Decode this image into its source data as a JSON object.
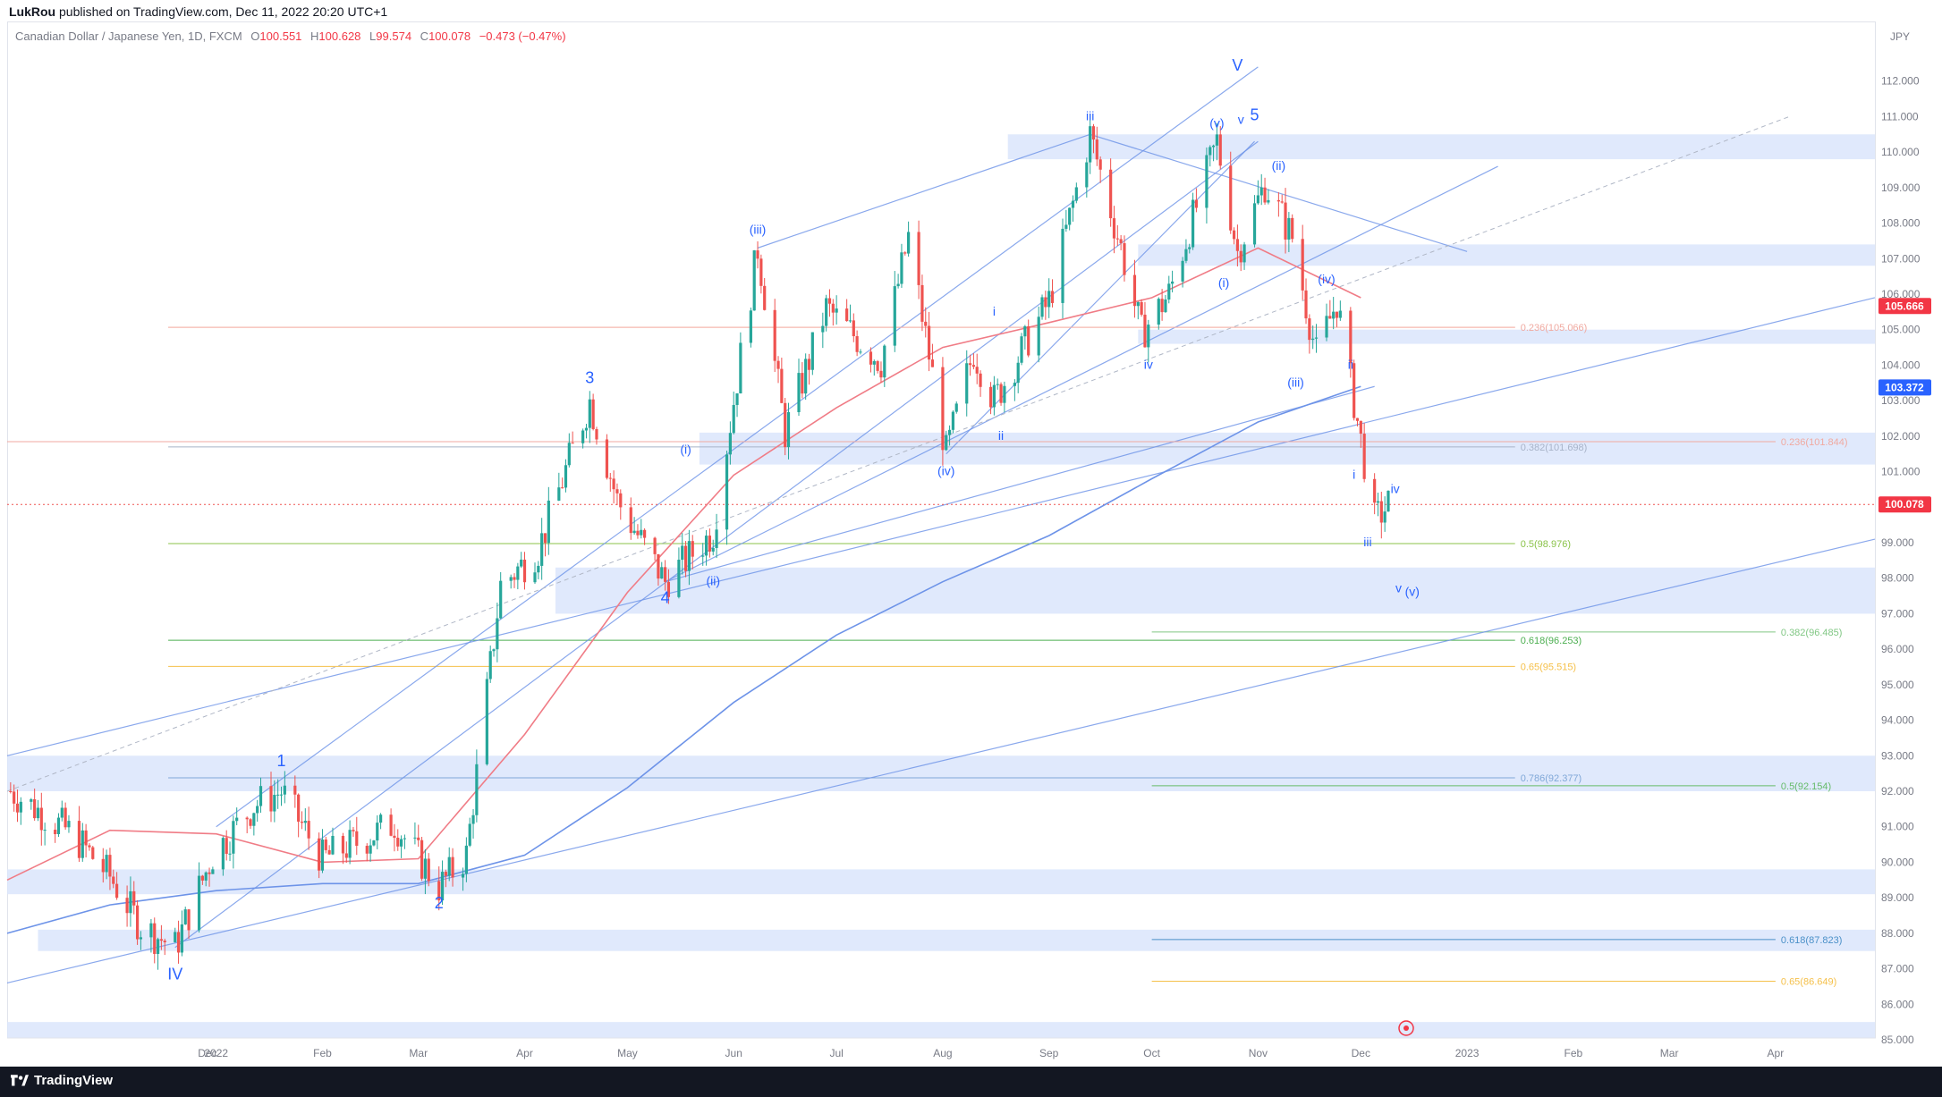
{
  "header": {
    "author": "LukRou",
    "published_text": "published on TradingView.com, Dec 11, 2022 20:20 UTC+1"
  },
  "legend": {
    "symbol": "Canadian Dollar / Japanese Yen, 1D, FXCM",
    "open_label": "O",
    "open": "100.551",
    "high_label": "H",
    "high": "100.628",
    "low_label": "L",
    "low": "99.574",
    "close_label": "C",
    "close": "100.078",
    "change": "−0.473 (−0.47%)"
  },
  "footer": {
    "brand": "TradingView"
  },
  "colors": {
    "up": "#26a69a",
    "down": "#ef5350",
    "zone": "#dbe5fb",
    "trend": "#6d93e8",
    "ma50": "#f07c86",
    "ma200": "#6d93e8",
    "wave_label": "#2962ff",
    "text_muted": "#787b86"
  },
  "chart_data": {
    "type": "candlestick",
    "currency": "JPY",
    "ylim": [
      85.0,
      113.0
    ],
    "x_ticks": [
      "Dec",
      "2022",
      "Feb",
      "Mar",
      "Apr",
      "May",
      "Jun",
      "Jul",
      "Aug",
      "Sep",
      "Oct",
      "Nov",
      "Dec",
      "2023",
      "Feb",
      "Mar",
      "Apr"
    ],
    "x_tick_dates": [
      "2021-12-01",
      "2022-01-01",
      "2022-02-01",
      "2022-03-01",
      "2022-04-01",
      "2022-05-01",
      "2022-06-01",
      "2022-07-01",
      "2022-08-01",
      "2022-09-01",
      "2022-10-01",
      "2022-11-01",
      "2022-12-01",
      "2023-01-01",
      "2023-02-01",
      "2023-03-01",
      "2023-04-01"
    ],
    "y_ticks": [
      "112.000",
      "111.000",
      "110.000",
      "109.000",
      "108.000",
      "107.000",
      "106.000",
      "105.000",
      "104.000",
      "103.000",
      "102.000",
      "101.000",
      "99.000",
      "98.000",
      "97.000",
      "96.000",
      "95.000",
      "94.000",
      "93.000",
      "92.000",
      "91.000",
      "90.000",
      "89.000",
      "88.000",
      "87.000",
      "86.000",
      "85.000"
    ],
    "price_tags": [
      {
        "label": "105.666",
        "value": 105.666,
        "color": "#f23645"
      },
      {
        "label": "103.372",
        "value": 103.372,
        "color": "#2962ff"
      },
      {
        "label": "100.078",
        "value": 100.078,
        "color": "#f23645"
      }
    ],
    "last_price": 100.078,
    "ohlc_monthly_path": [
      [
        "2021-11-02",
        92.0
      ],
      [
        "2021-11-20",
        90.8
      ],
      [
        "2021-12-01",
        89.6
      ],
      [
        "2021-12-10",
        88.2
      ],
      [
        "2021-12-20",
        87.6
      ],
      [
        "2021-12-31",
        90.2
      ],
      [
        "2022-01-12",
        91.6
      ],
      [
        "2022-01-20",
        92.0
      ],
      [
        "2022-02-01",
        90.1
      ],
      [
        "2022-02-12",
        90.6
      ],
      [
        "2022-02-22",
        91.1
      ],
      [
        "2022-03-07",
        89.3
      ],
      [
        "2022-03-15",
        90.2
      ],
      [
        "2022-03-25",
        97.8
      ],
      [
        "2022-04-05",
        98.8
      ],
      [
        "2022-04-20",
        103.0
      ],
      [
        "2022-04-28",
        100.2
      ],
      [
        "2022-05-12",
        97.9
      ],
      [
        "2022-05-26",
        99.3
      ],
      [
        "2022-06-08",
        107.3
      ],
      [
        "2022-06-16",
        102.1
      ],
      [
        "2022-06-28",
        105.6
      ],
      [
        "2022-07-14",
        104.1
      ],
      [
        "2022-07-22",
        107.6
      ],
      [
        "2022-08-02",
        101.5
      ],
      [
        "2022-08-10",
        104.4
      ],
      [
        "2022-08-16",
        103.0
      ],
      [
        "2022-09-01",
        105.8
      ],
      [
        "2022-09-13",
        110.5
      ],
      [
        "2022-09-22",
        107.3
      ],
      [
        "2022-09-28",
        104.9
      ],
      [
        "2022-10-06",
        106.0
      ],
      [
        "2022-10-20",
        110.3
      ],
      [
        "2022-10-26",
        107.2
      ],
      [
        "2022-11-03",
        109.1
      ],
      [
        "2022-11-11",
        107.6
      ],
      [
        "2022-11-18",
        104.3
      ],
      [
        "2022-11-24",
        105.8
      ],
      [
        "2022-12-05",
        99.6
      ],
      [
        "2022-12-09",
        100.078
      ]
    ],
    "moving_averages": [
      {
        "name": "MA50",
        "color": "#f07c86",
        "points": [
          [
            "2021-11-01",
            89.5
          ],
          [
            "2021-12-01",
            90.9
          ],
          [
            "2022-01-01",
            90.8
          ],
          [
            "2022-02-01",
            90.0
          ],
          [
            "2022-03-01",
            90.1
          ],
          [
            "2022-04-01",
            93.6
          ],
          [
            "2022-05-01",
            97.6
          ],
          [
            "2022-06-01",
            100.9
          ],
          [
            "2022-07-01",
            102.8
          ],
          [
            "2022-08-01",
            104.5
          ],
          [
            "2022-09-01",
            105.2
          ],
          [
            "2022-10-01",
            105.9
          ],
          [
            "2022-11-01",
            107.3
          ],
          [
            "2022-12-01",
            105.9
          ]
        ]
      },
      {
        "name": "MA200",
        "color": "#6d93e8",
        "points": [
          [
            "2021-11-01",
            88.0
          ],
          [
            "2021-12-01",
            88.8
          ],
          [
            "2022-01-01",
            89.2
          ],
          [
            "2022-02-01",
            89.4
          ],
          [
            "2022-03-01",
            89.4
          ],
          [
            "2022-04-01",
            90.2
          ],
          [
            "2022-05-01",
            92.1
          ],
          [
            "2022-06-01",
            94.5
          ],
          [
            "2022-07-01",
            96.4
          ],
          [
            "2022-08-01",
            97.9
          ],
          [
            "2022-09-01",
            99.2
          ],
          [
            "2022-10-01",
            100.8
          ],
          [
            "2022-11-01",
            102.4
          ],
          [
            "2022-12-01",
            103.4
          ]
        ]
      }
    ],
    "zones": [
      {
        "from": 109.8,
        "to": 110.5,
        "start": "2022-08-20"
      },
      {
        "from": 106.8,
        "to": 107.4,
        "start": "2022-09-27"
      },
      {
        "from": 104.6,
        "to": 105.0,
        "start": "2022-09-27"
      },
      {
        "from": 101.2,
        "to": 102.1,
        "start": "2022-05-22"
      },
      {
        "from": 97.0,
        "to": 98.3,
        "start": "2022-04-10"
      },
      {
        "from": 92.0,
        "to": 93.0,
        "start": "2021-11-01"
      },
      {
        "from": 89.1,
        "to": 89.8,
        "start": "2021-11-01"
      },
      {
        "from": 87.5,
        "to": 88.1,
        "start": "2021-11-10"
      },
      {
        "from": 85.0,
        "to": 85.5,
        "start": "2021-11-01"
      }
    ],
    "fib_levels": [
      {
        "label": "0.236(105.066)",
        "value": 105.066,
        "color": "#f0a9a0"
      },
      {
        "label": "0.382(101.698)",
        "value": 101.698,
        "color": "#a8b3c8"
      },
      {
        "label": "0.5(98.976)",
        "value": 98.976,
        "color": "#8bc34a"
      },
      {
        "label": "0.618(96.253)",
        "value": 96.253,
        "color": "#4caf50"
      },
      {
        "label": "0.65(95.515)",
        "value": 95.515,
        "color": "#f5c04a"
      },
      {
        "label": "0.786(92.377)",
        "value": 92.377,
        "color": "#80a8d8"
      },
      {
        "label": "0.236(101.844)",
        "value": 101.844,
        "color": "#f0a9a0"
      },
      {
        "label": "0.382(96.485)",
        "value": 96.485,
        "color": "#81c784"
      },
      {
        "label": "0.5(92.154)",
        "value": 92.154,
        "color": "#66bb6a"
      },
      {
        "label": "0.618(87.823)",
        "value": 87.823,
        "color": "#4a90c8"
      },
      {
        "label": "0.65(86.649)",
        "value": 86.649,
        "color": "#f5c04a"
      }
    ],
    "wave_labels": [
      {
        "text": "V",
        "date": "2022-10-26",
        "price": 112.3,
        "size": "large"
      },
      {
        "text": "IV",
        "date": "2021-12-20",
        "price": 86.7,
        "size": "large"
      },
      {
        "text": "5",
        "date": "2022-10-31",
        "price": 110.9,
        "size": "large"
      },
      {
        "text": "1",
        "date": "2022-01-20",
        "price": 92.7,
        "size": "large"
      },
      {
        "text": "2",
        "date": "2022-03-07",
        "price": 88.7,
        "size": "large"
      },
      {
        "text": "3",
        "date": "2022-04-20",
        "price": 103.5,
        "size": "large"
      },
      {
        "text": "4",
        "date": "2022-05-12",
        "price": 97.3,
        "size": "large"
      },
      {
        "text": "(i)",
        "date": "2022-05-18",
        "price": 101.5,
        "size": "small"
      },
      {
        "text": "(ii)",
        "date": "2022-05-26",
        "price": 97.8,
        "size": "small"
      },
      {
        "text": "(iii)",
        "date": "2022-06-08",
        "price": 107.7,
        "size": "small"
      },
      {
        "text": "(iv)",
        "date": "2022-08-02",
        "price": 100.9,
        "size": "small"
      },
      {
        "text": "i",
        "date": "2022-08-16",
        "price": 105.4,
        "size": "small"
      },
      {
        "text": "ii",
        "date": "2022-08-18",
        "price": 101.9,
        "size": "small"
      },
      {
        "text": "iii",
        "date": "2022-09-13",
        "price": 110.9,
        "size": "small"
      },
      {
        "text": "iv",
        "date": "2022-09-30",
        "price": 103.9,
        "size": "small"
      },
      {
        "text": "(v)",
        "date": "2022-10-20",
        "price": 110.7,
        "size": "small"
      },
      {
        "text": "v",
        "date": "2022-10-27",
        "price": 110.8,
        "size": "small"
      },
      {
        "text": "(i)",
        "date": "2022-10-22",
        "price": 106.2,
        "size": "small"
      },
      {
        "text": "(ii)",
        "date": "2022-11-07",
        "price": 109.5,
        "size": "small"
      },
      {
        "text": "(iv)",
        "date": "2022-11-21",
        "price": 106.3,
        "size": "small"
      },
      {
        "text": "(iii)",
        "date": "2022-11-12",
        "price": 103.4,
        "size": "small"
      },
      {
        "text": "ii",
        "date": "2022-11-28",
        "price": 103.9,
        "size": "small"
      },
      {
        "text": "iv",
        "date": "2022-12-11",
        "price": 100.4,
        "size": "small"
      },
      {
        "text": "i",
        "date": "2022-11-29",
        "price": 100.8,
        "size": "small"
      },
      {
        "text": "iii",
        "date": "2022-12-03",
        "price": 98.9,
        "size": "small"
      },
      {
        "text": "v",
        "date": "2022-12-12",
        "price": 97.6,
        "size": "small"
      },
      {
        "text": "(v)",
        "date": "2022-12-16",
        "price": 97.5,
        "size": "small"
      }
    ]
  }
}
